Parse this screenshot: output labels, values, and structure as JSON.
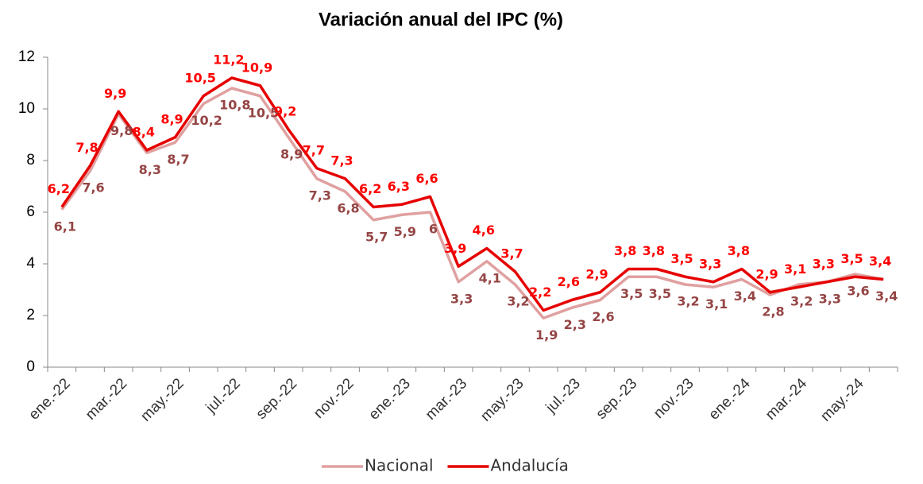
{
  "chart_data": {
    "type": "line",
    "title": "Variación anual del IPC (%)",
    "categories": [
      "ene.-22",
      null,
      "mar.-22",
      null,
      "may.-22",
      null,
      "jul.-22",
      null,
      "sep.-22",
      null,
      "nov.-22",
      null,
      "ene.-23",
      null,
      "mar.-23",
      null,
      "may.-23",
      null,
      "jul.-23",
      null,
      "sep.-23",
      null,
      "nov.-23",
      null,
      "ene.-24",
      null,
      "mar.-24",
      null,
      "may.-24",
      null
    ],
    "series": [
      {
        "name": "Nacional",
        "color": "#e0a0a0",
        "label_color": "#954545",
        "values": [
          6.1,
          7.6,
          9.8,
          8.3,
          8.7,
          10.2,
          10.8,
          10.5,
          8.9,
          7.3,
          6.8,
          5.7,
          5.9,
          6,
          3.3,
          4.1,
          3.2,
          1.9,
          2.3,
          2.6,
          3.5,
          3.5,
          3.2,
          3.1,
          3.4,
          2.8,
          3.2,
          3.3,
          3.6,
          3.4
        ],
        "value_labels": [
          "6,1",
          "7,6",
          "9,8",
          "8,3",
          "8,7",
          "10,2",
          "10,8",
          "10,5",
          "8,9",
          "7,3",
          "6,8",
          "5,7",
          "5,9",
          "6",
          "3,3",
          "4,1",
          "3,2",
          "1,9",
          "2,3",
          "2,6",
          "3,5",
          "3,5",
          "3,2",
          "3,1",
          "3,4",
          "2,8",
          "3,2",
          "3,3",
          "3,6",
          "3,4"
        ]
      },
      {
        "name": "Andalucía",
        "color": "#e60000",
        "label_color": "#ff0000",
        "values": [
          6.2,
          7.8,
          9.9,
          8.4,
          8.9,
          10.5,
          11.2,
          10.9,
          9.2,
          7.7,
          7.3,
          6.2,
          6.3,
          6.6,
          3.9,
          4.6,
          3.7,
          2.2,
          2.6,
          2.9,
          3.8,
          3.8,
          3.5,
          3.3,
          3.8,
          2.9,
          3.1,
          3.3,
          3.5,
          3.4
        ],
        "value_labels": [
          "6,2",
          "7,8",
          "9,9",
          "8,4",
          "8,9",
          "10,5",
          "11,2",
          "10,9",
          "9,2",
          "7,7",
          "7,3",
          "6,2",
          "6,3",
          "6,6",
          "3,9",
          "4,6",
          "3,7",
          "2,2",
          "2,6",
          "2,9",
          "3,8",
          "3,8",
          "3,5",
          "3,3",
          "3,8",
          "2,9",
          "3,1",
          "3,3",
          "3,5",
          "3,4"
        ]
      }
    ],
    "ylim": [
      0,
      12
    ],
    "yticks": [
      0,
      2,
      4,
      6,
      8,
      10,
      12
    ],
    "legend": "bottom"
  }
}
